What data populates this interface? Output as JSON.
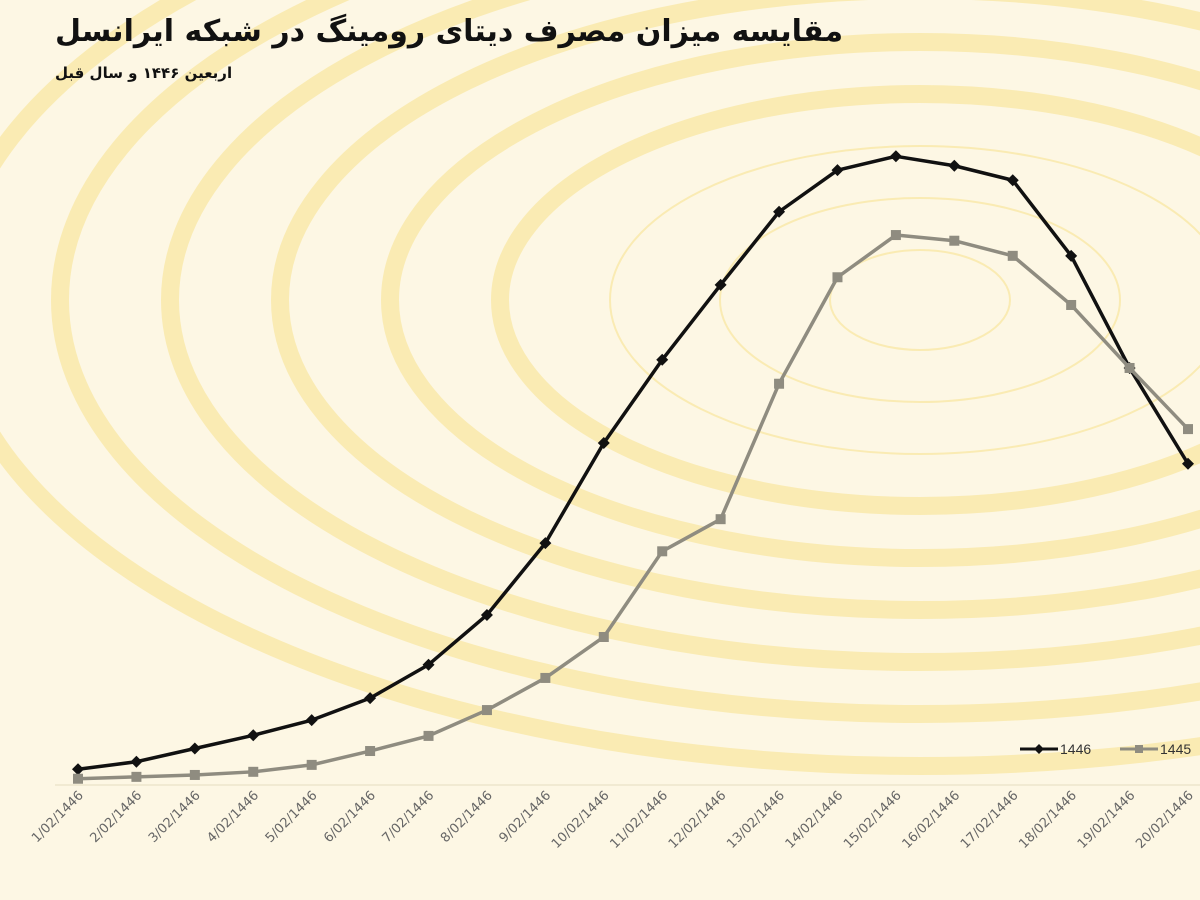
{
  "chart_data": {
    "type": "line",
    "title": "مقایسه میزان مصرف دیتای رومینگ در شبکه ایرانسل",
    "subtitle": "اربعین ۱۴۴۶ و سال قبل",
    "categories": [
      "1/02/1446",
      "2/02/1446",
      "3/02/1446",
      "4/02/1446",
      "5/02/1446",
      "6/02/1446",
      "7/02/1446",
      "8/02/1446",
      "9/02/1446",
      "10/02/1446",
      "11/02/1446",
      "12/02/1446",
      "13/02/1446",
      "14/02/1446",
      "15/02/1446",
      "16/02/1446",
      "17/02/1446",
      "18/02/1446",
      "19/02/1446",
      "20/02/1446"
    ],
    "series": [
      {
        "name": "1446",
        "color": "#111111",
        "marker": "diamond",
        "values": [
          1.7,
          2.9,
          5.0,
          7.1,
          9.5,
          13.0,
          18.3,
          26.2,
          37.6,
          53.5,
          66.7,
          78.6,
          90.2,
          96.8,
          99.0,
          97.5,
          95.2,
          83.2,
          65.4,
          50.2
        ]
      },
      {
        "name": "1445",
        "color": "#8f8c80",
        "marker": "square",
        "values": [
          0.2,
          0.5,
          0.8,
          1.3,
          2.4,
          4.6,
          7.0,
          11.1,
          16.2,
          22.7,
          36.3,
          41.4,
          62.9,
          79.8,
          86.5,
          85.6,
          83.2,
          75.4,
          65.4,
          55.7
        ]
      }
    ],
    "ylim": [
      0,
      100
    ],
    "yaxis_visible": false,
    "grid": false,
    "legend": "bottom-right",
    "background_color": "#fdf7e4",
    "accent_color": "#f7e28a"
  }
}
